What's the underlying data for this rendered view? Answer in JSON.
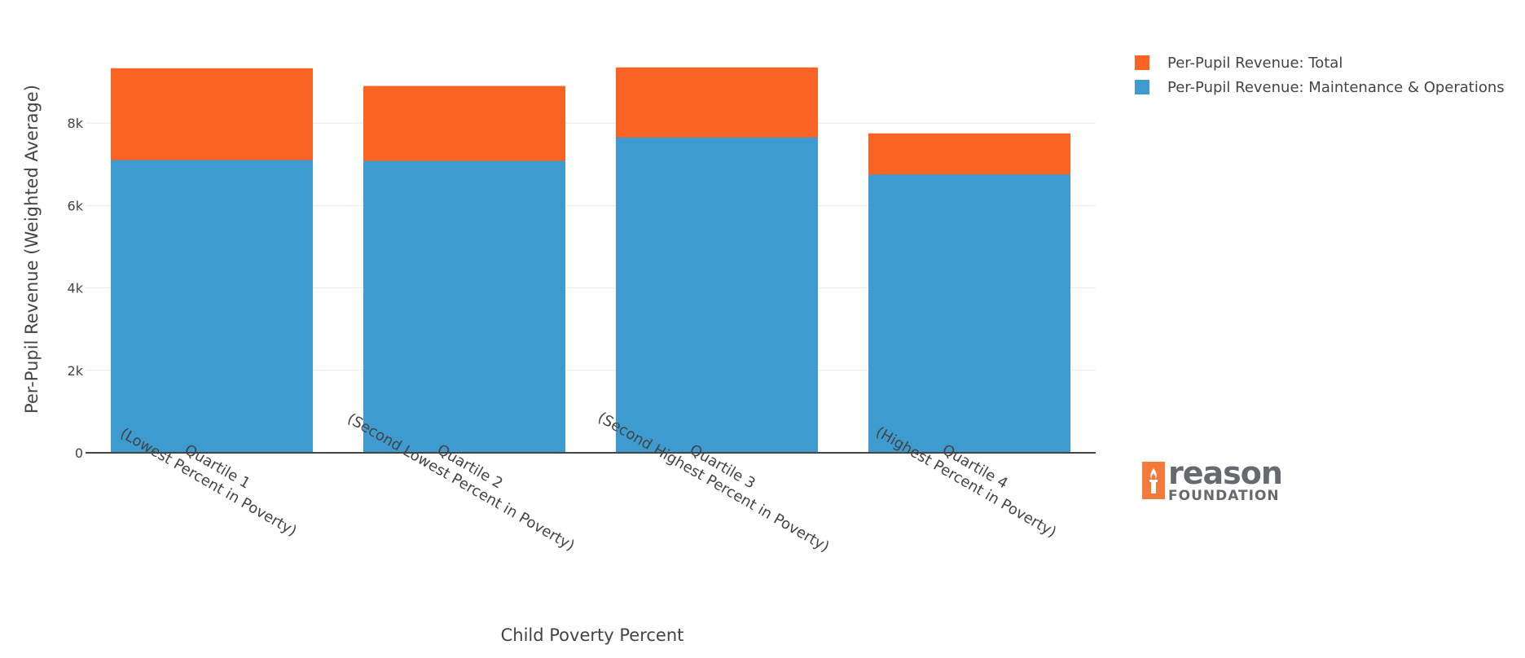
{
  "chart_data": {
    "type": "bar",
    "barmode": "overlay",
    "categories": [
      [
        "Quartile 1",
        "(Lowest Percent in Poverty)"
      ],
      [
        "Quartile 2",
        "(Second Lowest Percent in Poverty)"
      ],
      [
        "Quartile 3",
        "(Second Highest Percent in Poverty)"
      ],
      [
        "Quartile 4",
        "(Highest Percent in Poverty)"
      ]
    ],
    "series": [
      {
        "name": "Per-Pupil Revenue: Total",
        "color": "#f96424",
        "values": [
          9330,
          8900,
          9350,
          7750
        ]
      },
      {
        "name": "Per-Pupil Revenue: Maintenance & Operations",
        "color": "#3d9bcf",
        "values": [
          7100,
          7080,
          7650,
          6750
        ]
      }
    ],
    "xlabel": "Child Poverty Percent",
    "ylabel": "Per-Pupil Revenue (Weighted Average)",
    "ylim": [
      0,
      9800
    ],
    "yticks": [
      0,
      2000,
      4000,
      6000,
      8000
    ],
    "ytick_labels": [
      "0",
      "2k",
      "4k",
      "6k",
      "8k"
    ],
    "legend_position": "top-right",
    "grid": true
  },
  "legend": {
    "items": [
      {
        "label": "Per-Pupil Revenue: Total",
        "color": "#f96424"
      },
      {
        "label": "Per-Pupil Revenue: Maintenance & Operations",
        "color": "#3d9bcf"
      }
    ]
  },
  "logo": {
    "word": "reason",
    "sub": "FOUNDATION",
    "color": "#f47a3b"
  }
}
